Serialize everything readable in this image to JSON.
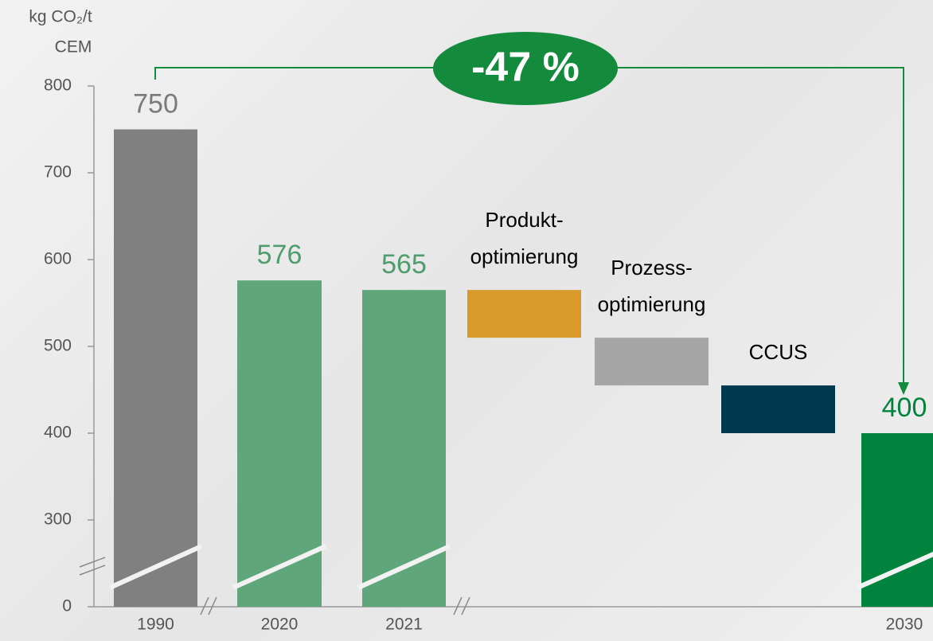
{
  "chart_data": {
    "type": "waterfall",
    "ylabel": [
      "kg CO₂/t",
      "CEM"
    ],
    "annotation": "-47 %",
    "categories": [
      "1990",
      "2020",
      "2021",
      "Produkt-\noptimierung",
      "Prozess-\noptimierung",
      "CCUS",
      "2030"
    ],
    "measure": [
      "absolute",
      "absolute",
      "absolute",
      "relative",
      "relative",
      "relative",
      "absolute"
    ],
    "values": [
      750,
      576,
      565,
      -55,
      -55,
      -55,
      400
    ],
    "colors": [
      "#808080",
      "#5fa77b",
      "#5fa77b",
      "#d99a2b",
      "#a6a6a6",
      "#00384f",
      "#00843d"
    ],
    "label_colors": [
      "#7a7a7a",
      "#4f9d6c",
      "#4f9d6c",
      "#000000",
      "#000000",
      "#000000",
      "#00843d"
    ],
    "ylim": [
      0,
      800
    ],
    "yticks": [
      0,
      300,
      400,
      500,
      600,
      700,
      800
    ],
    "axis_break": true,
    "annotation_color": "#138a3c"
  }
}
